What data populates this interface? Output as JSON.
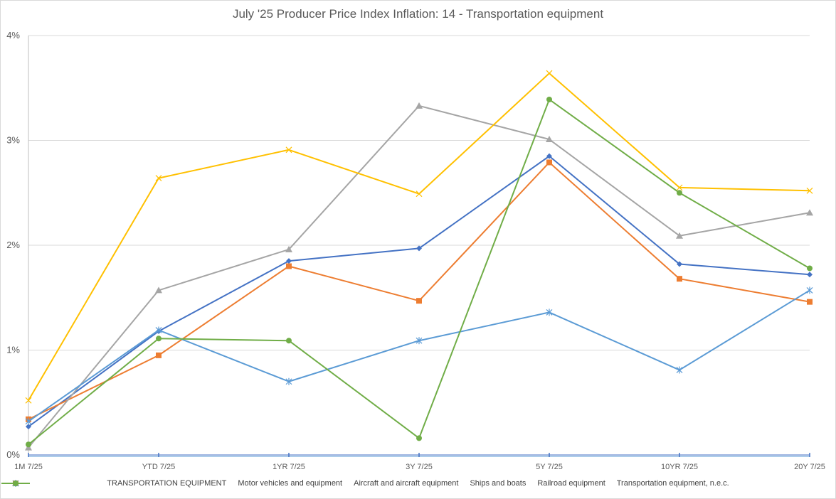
{
  "chart_data": {
    "type": "line",
    "title": "July '25 Producer Price Index Inflation: 14 - Transportation equipment",
    "xlabel": "",
    "ylabel": "",
    "categories": [
      "1M 7/25",
      "YTD 7/25",
      "1YR 7/25",
      "3Y 7/25",
      "5Y 7/25",
      "10YR 7/25",
      "20Y 7/25"
    ],
    "ylim": [
      0,
      4
    ],
    "yticks": [
      "0%",
      "1%",
      "2%",
      "3%",
      "4%"
    ],
    "grid": "horizontal",
    "legend_position": "bottom",
    "series": [
      {
        "name": "TRANSPORTATION EQUIPMENT",
        "color": "#4472C4",
        "marker": "diamond",
        "values": [
          0.27,
          1.18,
          1.85,
          1.97,
          2.85,
          1.82,
          1.72
        ]
      },
      {
        "name": "Motor vehicles and equipment",
        "color": "#ED7D31",
        "marker": "square",
        "values": [
          0.34,
          0.95,
          1.8,
          1.47,
          2.79,
          1.68,
          1.46
        ]
      },
      {
        "name": "Aircraft and aircraft equipment",
        "color": "#A5A5A5",
        "marker": "triangle",
        "values": [
          0.07,
          1.57,
          1.96,
          3.33,
          3.01,
          2.09,
          2.31
        ]
      },
      {
        "name": "Ships and boats",
        "color": "#FFC000",
        "marker": "x",
        "values": [
          0.52,
          2.64,
          2.91,
          2.49,
          3.64,
          2.55,
          2.52
        ]
      },
      {
        "name": "Railroad equipment",
        "color": "#5B9BD5",
        "marker": "star",
        "values": [
          0.32,
          1.19,
          0.7,
          1.09,
          1.36,
          0.81,
          1.57
        ]
      },
      {
        "name": "Transportation equipment, n.e.c.",
        "color": "#70AD47",
        "marker": "circle",
        "values": [
          0.1,
          1.11,
          1.09,
          0.16,
          3.39,
          2.5,
          1.78
        ]
      }
    ]
  }
}
